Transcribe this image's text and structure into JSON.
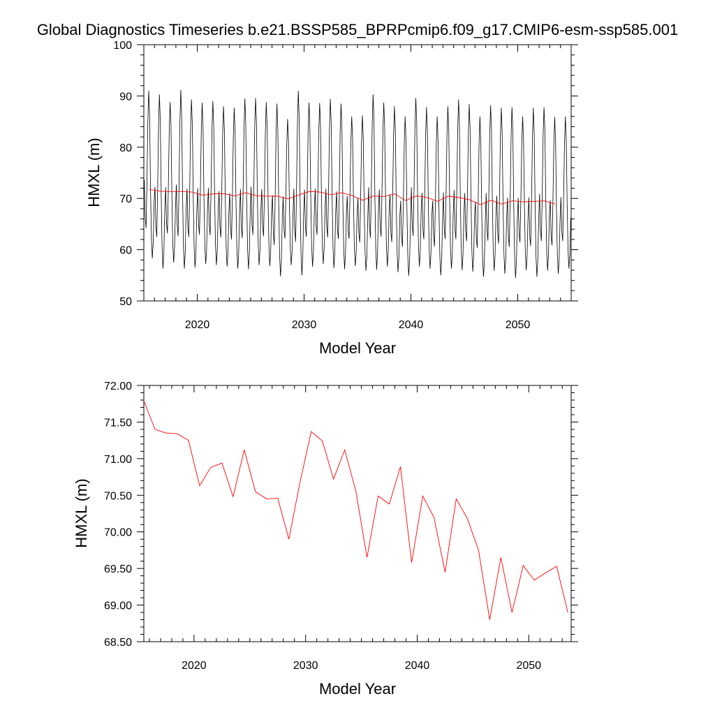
{
  "title": "Global Diagnostics Timeseries b.e21.BSSP585_BPRPcmip6.f09_g17.CMIP6-esm-ssp585.001",
  "colors": {
    "monthly": "#000000",
    "annual": "#ff0000",
    "axis": "#000000"
  },
  "chart_data": [
    {
      "type": "line",
      "xlabel": "Model Year",
      "ylabel": "HMXL (m)",
      "xlim": [
        2015,
        2055
      ],
      "ylim": [
        50,
        100
      ],
      "x_ticks": [
        2020,
        2030,
        2040,
        2050
      ],
      "x_tick_labels": [
        "2020",
        "2030",
        "2040",
        "2050"
      ],
      "y_ticks": [
        50,
        60,
        70,
        80,
        90,
        100
      ],
      "y_tick_labels": [
        "50",
        "60",
        "70",
        "80",
        "90",
        "100"
      ],
      "grid": false,
      "monthly_series": {
        "start_year": 2015,
        "months_per_year": 12,
        "years": 40,
        "annual_pattern": [
          73.5,
          66,
          64,
          73,
          85,
          91,
          86,
          72,
          62,
          58,
          61,
          69
        ],
        "annual_peaks": [
          91.0,
          90.3,
          88.8,
          91.2,
          89.3,
          88.7,
          89.0,
          88.0,
          87.7,
          89.5,
          89.6,
          88.8,
          88.5,
          85.5,
          91.0,
          88.7,
          88.6,
          89.4,
          88.5,
          86.0,
          86.2,
          90.3,
          88.7,
          88.0,
          86.0,
          89.6,
          87.8,
          86.0,
          88.0,
          89.3,
          88.4,
          86.0,
          88.2,
          87.7,
          87.8,
          86.0,
          87.7,
          87.8,
          85.9,
          86.0
        ],
        "annual_troughs": [
          58.3,
          56.3,
          57.5,
          56.3,
          56.5,
          57.2,
          57.0,
          56.7,
          56.3,
          56.2,
          57.0,
          56.8,
          54.8,
          57.0,
          55.0,
          56.7,
          57.2,
          56.4,
          56.2,
          56.8,
          55.9,
          56.1,
          56.7,
          55.6,
          54.9,
          56.7,
          56.3,
          55.0,
          56.3,
          56.0,
          55.7,
          54.7,
          55.9,
          55.3,
          54.5,
          56.0,
          54.7,
          55.9,
          55.3,
          56.3
        ]
      },
      "series": [
        {
          "values": [
            71.79,
            71.4,
            71.35,
            71.34,
            71.25,
            70.63,
            70.88,
            70.94,
            70.48,
            71.12,
            70.55,
            70.45,
            70.46,
            69.9,
            70.68,
            71.37,
            71.24,
            70.72,
            71.12,
            70.56,
            69.65,
            70.49,
            70.38,
            70.89,
            69.58,
            70.49,
            70.2,
            69.45,
            70.45,
            70.18,
            69.75,
            68.8,
            69.65,
            68.9,
            69.54,
            69.34,
            69.44,
            69.53,
            68.9
          ],
          "x_start": 2015.5,
          "x_step": 1
        }
      ]
    },
    {
      "type": "line",
      "xlabel": "Model Year",
      "ylabel": "HMXL (m)",
      "xlim": [
        2015.5,
        2053.8
      ],
      "ylim": [
        68.5,
        72.0
      ],
      "x_ticks": [
        2020,
        2030,
        2040,
        2050
      ],
      "x_tick_labels": [
        "2020",
        "2030",
        "2040",
        "2050"
      ],
      "y_ticks": [
        68.5,
        69.0,
        69.5,
        70.0,
        70.5,
        71.0,
        71.5,
        72.0
      ],
      "y_tick_labels": [
        "68.50",
        "69.00",
        "69.50",
        "70.00",
        "70.50",
        "71.00",
        "71.50",
        "72.00"
      ],
      "grid": false,
      "series": [
        {
          "values": [
            71.79,
            71.4,
            71.35,
            71.34,
            71.25,
            70.63,
            70.88,
            70.94,
            70.48,
            71.12,
            70.55,
            70.45,
            70.46,
            69.9,
            70.68,
            71.37,
            71.24,
            70.72,
            71.12,
            70.56,
            69.65,
            70.49,
            70.38,
            70.89,
            69.58,
            70.49,
            70.2,
            69.45,
            70.45,
            70.18,
            69.75,
            68.8,
            69.65,
            68.9,
            69.54,
            69.34,
            69.44,
            69.53,
            68.9
          ],
          "x_start": 2015.5,
          "x_step": 1
        }
      ]
    }
  ]
}
